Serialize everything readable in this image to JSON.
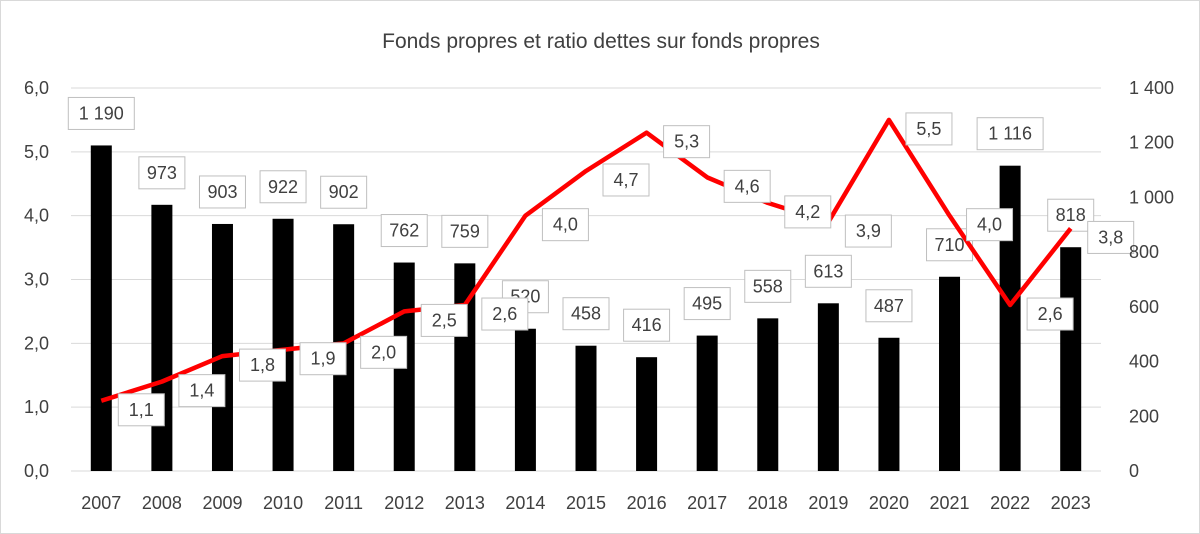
{
  "chart_data": {
    "type": "bar",
    "title": "Fonds propres et ratio dettes sur fonds propres",
    "categories": [
      "2007",
      "2008",
      "2009",
      "2010",
      "2011",
      "2012",
      "2013",
      "2014",
      "2015",
      "2016",
      "2017",
      "2018",
      "2019",
      "2020",
      "2021",
      "2022",
      "2023"
    ],
    "series": [
      {
        "type": "bar",
        "axis": "right",
        "color": "#000000",
        "values": [
          1190,
          973,
          903,
          922,
          902,
          762,
          759,
          520,
          458,
          416,
          495,
          558,
          613,
          487,
          710,
          1116,
          818
        ],
        "labels": [
          "1 190",
          "973",
          "903",
          "922",
          "902",
          "762",
          "759",
          "520",
          "458",
          "416",
          "495",
          "558",
          "613",
          "487",
          "710",
          "1 116",
          "818"
        ]
      },
      {
        "type": "line",
        "axis": "left",
        "color": "#ff0000",
        "values": [
          1.1,
          1.4,
          1.8,
          1.9,
          2.0,
          2.5,
          2.6,
          4.0,
          4.7,
          5.3,
          4.6,
          4.2,
          3.9,
          5.5,
          4.0,
          2.6,
          3.8
        ],
        "labels": [
          "1,1",
          "1,4",
          "1,8",
          "1,9",
          "2,0",
          "2,5",
          "2,6",
          "4,0",
          "4,7",
          "5,3",
          "4,6",
          "4,2",
          "3,9",
          "5,5",
          "4,0",
          "2,6",
          "3,8"
        ]
      }
    ],
    "y_left": {
      "ylim": [
        0,
        6
      ],
      "ticks": [
        "0,0",
        "1,0",
        "2,0",
        "3,0",
        "4,0",
        "5,0",
        "6,0"
      ]
    },
    "y_right": {
      "ylim": [
        0,
        1400
      ],
      "ticks": [
        "0",
        "200",
        "400",
        "600",
        "800",
        "1 000",
        "1 200",
        "1 400"
      ]
    },
    "grid": true,
    "legend": "none"
  }
}
